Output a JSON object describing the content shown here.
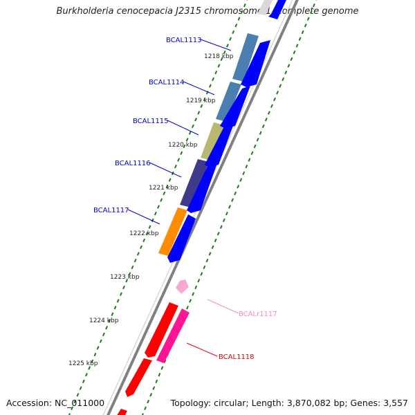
{
  "title": "Burkholderia cenocepacia J2315 chromosome 1, complete genome",
  "footer": {
    "accession": "Accession: NC_011000",
    "summary": "Topology: circular; Length: 3,870,082 bp; Genes: 3,557"
  },
  "ticks": [
    "1218 kbp",
    "1219 kbp",
    "1220 kbp",
    "1221 kbp",
    "1222 kbp",
    "1223 kbp",
    "1224 kbp",
    "1225 kbp"
  ],
  "genes": [
    {
      "label": "BCAL1113",
      "color": "#0000cc",
      "fill": "#4b7fb0"
    },
    {
      "label": "BCAL1114",
      "color": "#0000cc",
      "fill": "#4b7fb0"
    },
    {
      "label": "BCAL1115",
      "color": "#0000cc",
      "fill": "#b8b870"
    },
    {
      "label": "BCAL1116",
      "color": "#0000cc",
      "fill": "#3f3a8a"
    },
    {
      "label": "BCAL1117",
      "color": "#0000cc",
      "fill": "#ff8c00"
    },
    {
      "label": "BCALr1117",
      "color": "#f48cc4",
      "fill": "#f7a8d4"
    },
    {
      "label": "BCAL1118",
      "color": "#e00000",
      "fill": "#ff1493"
    }
  ],
  "colors": {
    "cds_forward": "#0000ff",
    "cds_other": "#ff0000",
    "tick_mark": "#1a7a1a",
    "backbone": "#808080"
  }
}
